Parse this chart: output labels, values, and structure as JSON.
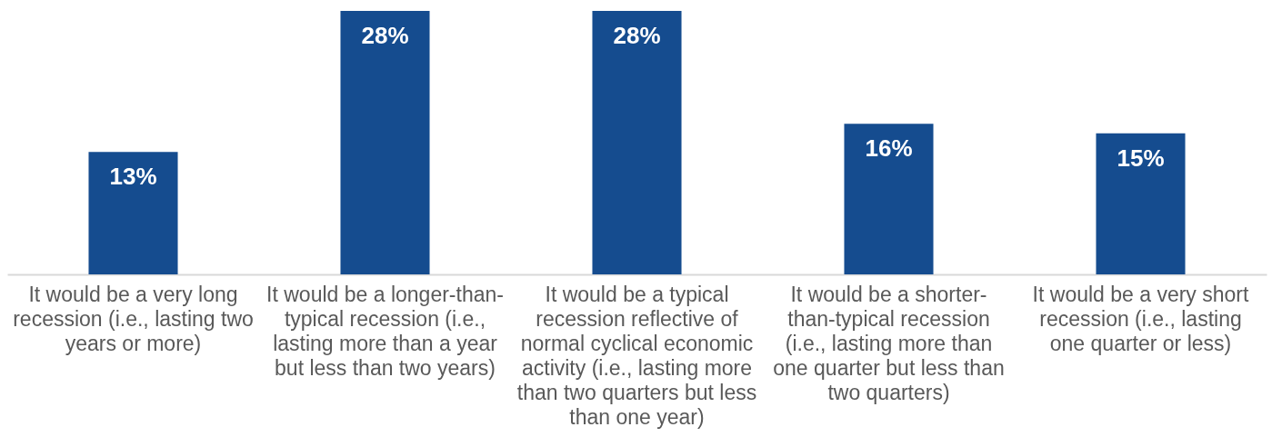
{
  "chart_data": {
    "type": "bar",
    "categories": [
      "It would be a very long recession (i.e., lasting two years or more)",
      "It would be a longer-than-typical recession (i.e., lasting more than a year but less than two years)",
      "It would be a typical recession reflective of normal cyclical economic activity (i.e., lasting more than two quarters but less than one year)",
      "It would be a shorter-than-typical recession (i.e., lasting more than one quarter but less than two quarters)",
      "It would be a very short recession (i.e., lasting one quarter or less)"
    ],
    "values": [
      13,
      28,
      28,
      16,
      15
    ],
    "value_labels": [
      "13%",
      "28%",
      "28%",
      "16%",
      "15%"
    ],
    "color": "#154c8f"
  }
}
